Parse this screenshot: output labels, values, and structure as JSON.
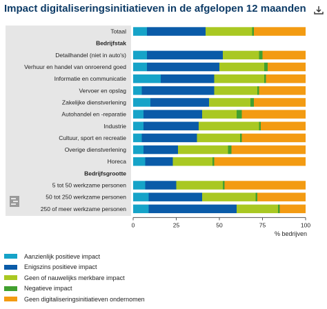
{
  "title": "Impact digitaliseringsinitiatieven in de afgelopen 12 maanden",
  "export_icon": "download-icon",
  "logo_icon": "cbs-logo",
  "chart_data": {
    "type": "bar",
    "orientation": "horizontal",
    "stacked": true,
    "xlabel": "% bedrijven",
    "xlim": [
      0,
      100
    ],
    "xticks": [
      0,
      25,
      50,
      75,
      100
    ],
    "grid": false,
    "legend_position": "bottom",
    "rows": [
      {
        "label": "Totaal",
        "kind": "bar"
      },
      {
        "label": "Bedrijfstak",
        "kind": "header"
      },
      {
        "label": "Detailhandel (niet in auto's)",
        "kind": "bar"
      },
      {
        "label": "Verhuur en handel van onroerend goed",
        "kind": "bar"
      },
      {
        "label": "Informatie en communicatie",
        "kind": "bar"
      },
      {
        "label": "Vervoer en opslag",
        "kind": "bar"
      },
      {
        "label": "Zakelijke dienstverlening",
        "kind": "bar"
      },
      {
        "label": "Autohandel en -reparatie",
        "kind": "bar"
      },
      {
        "label": "Industrie",
        "kind": "bar"
      },
      {
        "label": "Cultuur, sport en recreatie",
        "kind": "bar"
      },
      {
        "label": "Overige dienstverlening",
        "kind": "bar"
      },
      {
        "label": "Horeca",
        "kind": "bar"
      },
      {
        "label": "Bedrijfsgrootte",
        "kind": "header"
      },
      {
        "label": "5 tot 50 werkzame personen",
        "kind": "bar"
      },
      {
        "label": "50 tot 250 werkzame personen",
        "kind": "bar"
      },
      {
        "label": "250 of meer werkzame personen",
        "kind": "bar"
      }
    ],
    "series": [
      {
        "name": "Aanzienlijk positieve impact",
        "color": "#16a3c8",
        "values": [
          8,
          null,
          8,
          8,
          16,
          5,
          10,
          6,
          6,
          5,
          6,
          7,
          null,
          7,
          9,
          9
        ]
      },
      {
        "name": "Enigszins positieve impact",
        "color": "#0a5ba8",
        "values": [
          34,
          null,
          44,
          42,
          31,
          42,
          34,
          34,
          32,
          32,
          20,
          16,
          null,
          18,
          31,
          51
        ]
      },
      {
        "name": "Geen of nauwelijks merkbare impact",
        "color": "#a9c822",
        "values": [
          27,
          null,
          21,
          26,
          29,
          25,
          24,
          20,
          35,
          25,
          29,
          23,
          null,
          27,
          31,
          24
        ]
      },
      {
        "name": "Negatieve impact",
        "color": "#41a02f",
        "values": [
          1,
          null,
          2,
          2,
          1,
          1,
          2,
          3,
          1,
          1,
          2,
          1,
          null,
          1,
          1,
          1
        ]
      },
      {
        "name": "Geen digitaliseringsinitiatieven ondernomen",
        "color": "#f39b12",
        "values": [
          30,
          null,
          25,
          22,
          23,
          27,
          30,
          37,
          26,
          37,
          43,
          53,
          null,
          47,
          28,
          15
        ]
      }
    ]
  }
}
